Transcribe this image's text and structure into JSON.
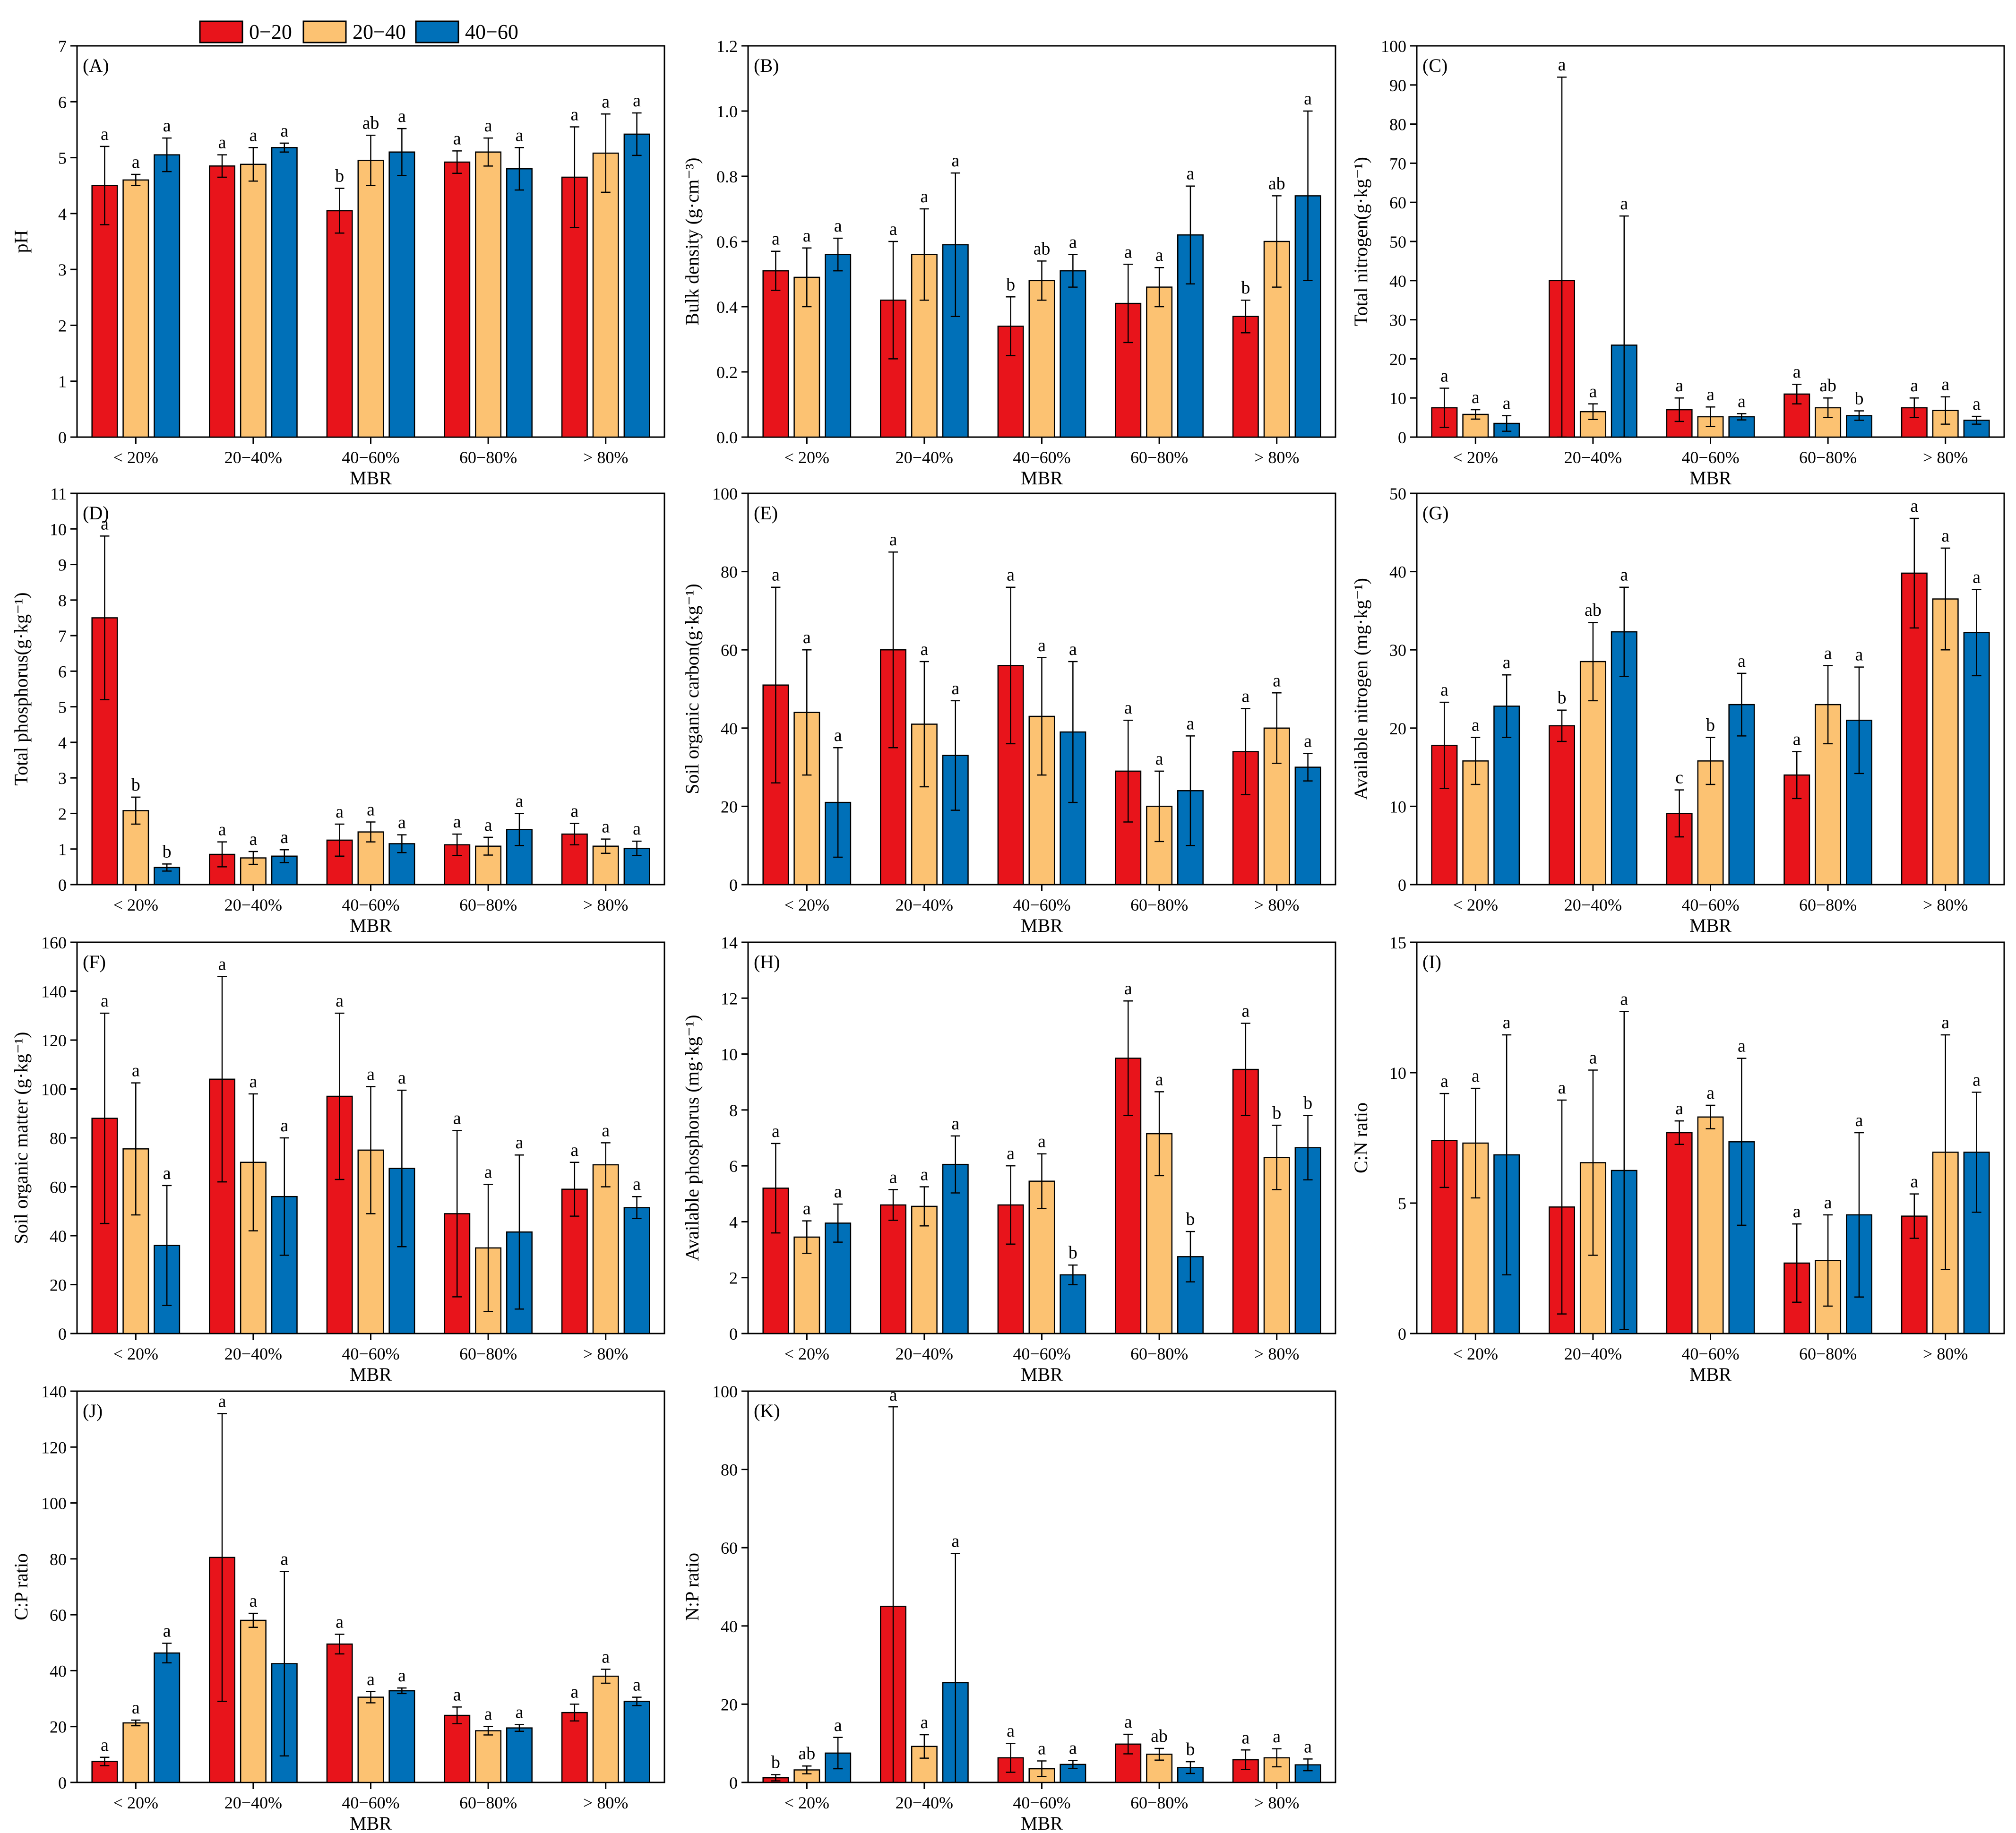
{
  "legend": {
    "entries": [
      {
        "label": "0−20",
        "color": "#e8141b"
      },
      {
        "label": "20−40",
        "color": "#fcc272"
      },
      {
        "label": "40−60",
        "color": "#0070b8"
      }
    ]
  },
  "chart_data": [
    {
      "type": "bar",
      "panel": "(A)",
      "title": "(A)",
      "ylabel": "pH",
      "xlabel": "MBR",
      "categories": [
        "< 20%",
        "20−40%",
        "40−60%",
        "60−80%",
        "> 80%"
      ],
      "ylim": [
        0,
        7
      ],
      "yticks": [
        0,
        1,
        2,
        3,
        4,
        5,
        6,
        7
      ],
      "series": [
        {
          "name": "0−20",
          "values": [
            4.5,
            4.85,
            4.05,
            4.92,
            4.65
          ],
          "errors": [
            0.7,
            0.2,
            0.4,
            0.2,
            0.9
          ],
          "letters": [
            "a",
            "a",
            "b",
            "a",
            "a"
          ]
        },
        {
          "name": "20−40",
          "values": [
            4.6,
            4.88,
            4.95,
            5.1,
            5.08
          ],
          "errors": [
            0.1,
            0.3,
            0.45,
            0.25,
            0.7
          ],
          "letters": [
            "a",
            "a",
            "ab",
            "a",
            "a"
          ]
        },
        {
          "name": "40−60",
          "values": [
            5.05,
            5.18,
            5.1,
            4.8,
            5.42
          ],
          "errors": [
            0.3,
            0.08,
            0.42,
            0.38,
            0.38
          ],
          "letters": [
            "a",
            "a",
            "a",
            "a",
            "a"
          ]
        }
      ]
    },
    {
      "type": "bar",
      "panel": "(B)",
      "title": "(B)",
      "ylabel": "Bulk density (g·cm⁻³)",
      "xlabel": "",
      "categories": [
        "< 20%",
        "20−40%",
        "40−60%",
        "60−80%",
        "> 80%"
      ],
      "ylim": [
        0,
        1.2
      ],
      "yticks": [
        0.0,
        0.2,
        0.4,
        0.6,
        0.8,
        1.0,
        1.2
      ],
      "series": [
        {
          "name": "0−20",
          "values": [
            0.51,
            0.42,
            0.34,
            0.41,
            0.37
          ],
          "errors": [
            0.06,
            0.18,
            0.09,
            0.12,
            0.05
          ],
          "letters": [
            "a",
            "a",
            "b",
            "a",
            "b"
          ]
        },
        {
          "name": "20−40",
          "values": [
            0.49,
            0.56,
            0.48,
            0.46,
            0.6
          ],
          "errors": [
            0.09,
            0.14,
            0.06,
            0.06,
            0.14
          ],
          "letters": [
            "a",
            "a",
            "ab",
            "a",
            "ab"
          ]
        },
        {
          "name": "40−60",
          "values": [
            0.56,
            0.59,
            0.51,
            0.62,
            0.74
          ],
          "errors": [
            0.05,
            0.22,
            0.05,
            0.15,
            0.26
          ],
          "letters": [
            "a",
            "a",
            "a",
            "a",
            "a"
          ]
        }
      ]
    },
    {
      "type": "bar",
      "panel": "(C)",
      "title": "(C)",
      "ylabel": "Total nitrogen(g·kg⁻¹)",
      "xlabel": "MBR",
      "categories": [
        "< 20%",
        "20−40%",
        "40−60%",
        "60−80%",
        "> 80%"
      ],
      "ylim": [
        0,
        100
      ],
      "yticks": [
        0,
        10,
        20,
        30,
        40,
        50,
        60,
        70,
        80,
        90,
        100
      ],
      "series": [
        {
          "name": "0−20",
          "values": [
            7.5,
            40,
            7,
            11,
            7.5
          ],
          "errors": [
            5,
            52,
            3,
            2.5,
            2.5
          ],
          "letters": [
            "a",
            "a",
            "a",
            "a",
            "a"
          ]
        },
        {
          "name": "20−40",
          "values": [
            5.8,
            6.5,
            5.2,
            7.5,
            6.8
          ],
          "errors": [
            1.2,
            2,
            2.5,
            2.5,
            3.5
          ],
          "letters": [
            "a",
            "a",
            "a",
            "ab",
            "a"
          ]
        },
        {
          "name": "40−60",
          "values": [
            3.5,
            23.5,
            5.2,
            5.5,
            4.3
          ],
          "errors": [
            2,
            33,
            0.8,
            1.2,
            1
          ],
          "letters": [
            "a",
            "a",
            "a",
            "b",
            "a"
          ]
        }
      ]
    },
    {
      "type": "bar",
      "panel": "(D)",
      "title": "(D)",
      "ylabel": "Total phosphorus(g·kg⁻¹)",
      "xlabel": "MBR",
      "categories": [
        "< 20%",
        "20−40%",
        "40−60%",
        "60−80%",
        "> 80%"
      ],
      "ylim": [
        0,
        11
      ],
      "yticks": [
        0,
        1,
        2,
        3,
        4,
        5,
        6,
        7,
        8,
        9,
        10,
        11
      ],
      "series": [
        {
          "name": "0−20",
          "values": [
            7.5,
            0.85,
            1.25,
            1.12,
            1.42
          ],
          "errors": [
            2.3,
            0.35,
            0.45,
            0.3,
            0.3
          ],
          "letters": [
            "a",
            "a",
            "a",
            "a",
            "a"
          ]
        },
        {
          "name": "20−40",
          "values": [
            2.08,
            0.75,
            1.48,
            1.08,
            1.08
          ],
          "errors": [
            0.38,
            0.18,
            0.28,
            0.25,
            0.2
          ],
          "letters": [
            "b",
            "a",
            "a",
            "a",
            "a"
          ]
        },
        {
          "name": "40−60",
          "values": [
            0.48,
            0.8,
            1.15,
            1.55,
            1.02
          ],
          "errors": [
            0.1,
            0.18,
            0.25,
            0.45,
            0.2
          ],
          "letters": [
            "b",
            "a",
            "a",
            "a",
            "a"
          ]
        }
      ]
    },
    {
      "type": "bar",
      "panel": "(E)",
      "title": "(E)",
      "ylabel": "Soil organic carbon(g·kg⁻¹)",
      "xlabel": "MBR",
      "categories": [
        "< 20%",
        "20−40%",
        "40−60%",
        "60−80%",
        "> 80%"
      ],
      "ylim": [
        0,
        100
      ],
      "yticks": [
        0,
        20,
        40,
        60,
        80,
        100
      ],
      "series": [
        {
          "name": "0−20",
          "values": [
            51,
            60,
            56,
            29,
            34
          ],
          "errors": [
            25,
            25,
            20,
            13,
            11
          ],
          "letters": [
            "a",
            "a",
            "a",
            "a",
            "a"
          ]
        },
        {
          "name": "20−40",
          "values": [
            44,
            41,
            43,
            20,
            40
          ],
          "errors": [
            16,
            16,
            15,
            9,
            9
          ],
          "letters": [
            "a",
            "a",
            "a",
            "a",
            "a"
          ]
        },
        {
          "name": "40−60",
          "values": [
            21,
            33,
            39,
            24,
            30
          ],
          "errors": [
            14,
            14,
            18,
            14,
            3.5
          ],
          "letters": [
            "a",
            "a",
            "a",
            "a",
            "a"
          ]
        }
      ]
    },
    {
      "type": "bar",
      "panel": "(G)",
      "title": "(G)",
      "ylabel": "Available nitrogen (mg·kg⁻¹)",
      "xlabel": "MBR",
      "categories": [
        "< 20%",
        "20−40%",
        "40−60%",
        "60−80%",
        "> 80%"
      ],
      "ylim": [
        0,
        50
      ],
      "yticks": [
        0,
        10,
        20,
        30,
        40,
        50
      ],
      "series": [
        {
          "name": "0−20",
          "values": [
            17.8,
            20.3,
            9.1,
            14,
            39.8
          ],
          "errors": [
            5.5,
            2,
            3,
            3,
            7
          ],
          "letters": [
            "a",
            "b",
            "c",
            "a",
            "a"
          ]
        },
        {
          "name": "20−40",
          "values": [
            15.8,
            28.5,
            15.8,
            23,
            36.5
          ],
          "errors": [
            3,
            5,
            3,
            5,
            6.5
          ],
          "letters": [
            "a",
            "ab",
            "b",
            "a",
            "a"
          ]
        },
        {
          "name": "40−60",
          "values": [
            22.8,
            32.3,
            23,
            21,
            32.2
          ],
          "errors": [
            4,
            5.7,
            4,
            6.8,
            5.5
          ],
          "letters": [
            "a",
            "a",
            "a",
            "a",
            "a"
          ]
        }
      ]
    },
    {
      "type": "bar",
      "panel": "(F)",
      "title": "(F)",
      "ylabel": "Soil organic matter (g·kg⁻¹)",
      "xlabel": "MBR",
      "categories": [
        "< 20%",
        "20−40%",
        "40−60%",
        "60−80%",
        "> 80%"
      ],
      "ylim": [
        0,
        160
      ],
      "yticks": [
        0,
        20,
        40,
        60,
        80,
        100,
        120,
        140,
        160
      ],
      "series": [
        {
          "name": "0−20",
          "values": [
            88,
            104,
            97,
            49,
            59
          ],
          "errors": [
            43,
            42,
            34,
            34,
            11
          ],
          "letters": [
            "a",
            "a",
            "a",
            "a",
            "a"
          ]
        },
        {
          "name": "20−40",
          "values": [
            75.5,
            70,
            75,
            35,
            69
          ],
          "errors": [
            27,
            28,
            26,
            26,
            9
          ],
          "letters": [
            "a",
            "a",
            "a",
            "a",
            "a"
          ]
        },
        {
          "name": "40−60",
          "values": [
            36,
            56,
            67.5,
            41.5,
            51.5
          ],
          "errors": [
            24.5,
            24,
            32,
            31.5,
            4.5
          ],
          "letters": [
            "a",
            "a",
            "a",
            "a",
            "a"
          ]
        }
      ]
    },
    {
      "type": "bar",
      "panel": "(H)",
      "title": "(H)",
      "ylabel": "Available phosphorus (mg·kg⁻¹)",
      "xlabel": "MBR",
      "categories": [
        "< 20%",
        "20−40%",
        "40−60%",
        "60−80%",
        "> 80%"
      ],
      "ylim": [
        0,
        14
      ],
      "yticks": [
        0,
        2,
        4,
        6,
        8,
        10,
        12,
        14
      ],
      "series": [
        {
          "name": "0−20",
          "values": [
            5.2,
            4.6,
            4.6,
            9.85,
            9.45
          ],
          "errors": [
            1.6,
            0.55,
            1.4,
            2.05,
            1.65
          ],
          "letters": [
            "a",
            "a",
            "a",
            "a",
            "a"
          ]
        },
        {
          "name": "20−40",
          "values": [
            3.45,
            4.55,
            5.45,
            7.15,
            6.3
          ],
          "errors": [
            0.58,
            0.7,
            0.98,
            1.5,
            1.15
          ],
          "letters": [
            "a",
            "a",
            "a",
            "a",
            "b"
          ]
        },
        {
          "name": "40−60",
          "values": [
            3.95,
            6.05,
            2.1,
            2.75,
            6.65
          ],
          "errors": [
            0.68,
            1.02,
            0.35,
            0.9,
            1.15
          ],
          "letters": [
            "a",
            "a",
            "b",
            "b",
            "b"
          ]
        }
      ]
    },
    {
      "type": "bar",
      "panel": "(I)",
      "title": "(I)",
      "ylabel": "C:N ratio",
      "xlabel": "MBR",
      "categories": [
        "< 20%",
        "20−40%",
        "40−60%",
        "60−80%",
        "> 80%"
      ],
      "ylim": [
        0,
        15
      ],
      "yticks": [
        0,
        5,
        10,
        15
      ],
      "series": [
        {
          "name": "0−20",
          "values": [
            7.4,
            4.85,
            7.7,
            2.7,
            4.5
          ],
          "errors": [
            1.8,
            4.1,
            0.45,
            1.5,
            0.85
          ],
          "letters": [
            "a",
            "a",
            "a",
            "a",
            "a"
          ]
        },
        {
          "name": "20−40",
          "values": [
            7.3,
            6.55,
            8.3,
            2.8,
            6.95
          ],
          "errors": [
            2.1,
            3.55,
            0.45,
            1.75,
            4.5
          ],
          "letters": [
            "a",
            "a",
            "a",
            "a",
            "a"
          ]
        },
        {
          "name": "40−60",
          "values": [
            6.85,
            6.25,
            7.35,
            4.55,
            6.95
          ],
          "errors": [
            4.6,
            6.1,
            3.2,
            3.15,
            2.3
          ],
          "letters": [
            "a",
            "a",
            "a",
            "a",
            "a"
          ]
        }
      ]
    },
    {
      "type": "bar",
      "panel": "(J)",
      "title": "(J)",
      "ylabel": "C:P ratio",
      "xlabel": "MBR",
      "categories": [
        "< 20%",
        "20−40%",
        "40−60%",
        "60−80%",
        "> 80%"
      ],
      "ylim": [
        0,
        140
      ],
      "yticks": [
        0,
        20,
        40,
        60,
        80,
        100,
        120,
        140
      ],
      "series": [
        {
          "name": "0−20",
          "values": [
            7.5,
            80.5,
            49.5,
            24,
            25
          ],
          "errors": [
            1.5,
            51.5,
            3.5,
            3,
            3
          ],
          "letters": [
            "a",
            "a",
            "a",
            "a",
            "a"
          ]
        },
        {
          "name": "20−40",
          "values": [
            21.3,
            58,
            30.5,
            18.5,
            38
          ],
          "errors": [
            1,
            2.5,
            2,
            1.5,
            2.5
          ],
          "letters": [
            "a",
            "a",
            "a",
            "a",
            "a"
          ]
        },
        {
          "name": "40−60",
          "values": [
            46.3,
            42.5,
            32.8,
            19.5,
            29
          ],
          "errors": [
            3.5,
            33,
            1,
            1.2,
            1.5
          ],
          "letters": [
            "a",
            "a",
            "a",
            "a",
            "a"
          ]
        }
      ]
    },
    {
      "type": "bar",
      "panel": "(K)",
      "title": "(K)",
      "ylabel": "N:P ratio",
      "xlabel": "MBR",
      "categories": [
        "< 20%",
        "20−40%",
        "40−60%",
        "60−80%",
        "> 80%"
      ],
      "ylim": [
        0,
        100
      ],
      "yticks": [
        0,
        20,
        40,
        60,
        80,
        100
      ],
      "series": [
        {
          "name": "0−20",
          "values": [
            1.2,
            45,
            6.3,
            9.8,
            5.8
          ],
          "errors": [
            0.8,
            51,
            3.7,
            2.5,
            2.5
          ],
          "letters": [
            "b",
            "a",
            "a",
            "a",
            "a"
          ]
        },
        {
          "name": "20−40",
          "values": [
            3.2,
            9.2,
            3.5,
            7.2,
            6.3
          ],
          "errors": [
            1,
            3,
            2,
            1.5,
            2.3
          ],
          "letters": [
            "ab",
            "a",
            "a",
            "ab",
            "a"
          ]
        },
        {
          "name": "40−60",
          "values": [
            7.5,
            25.5,
            4.6,
            3.8,
            4.5
          ],
          "errors": [
            4,
            33,
            1,
            1.5,
            1.5
          ],
          "letters": [
            "a",
            "a",
            "a",
            "b",
            "a"
          ]
        }
      ]
    }
  ]
}
